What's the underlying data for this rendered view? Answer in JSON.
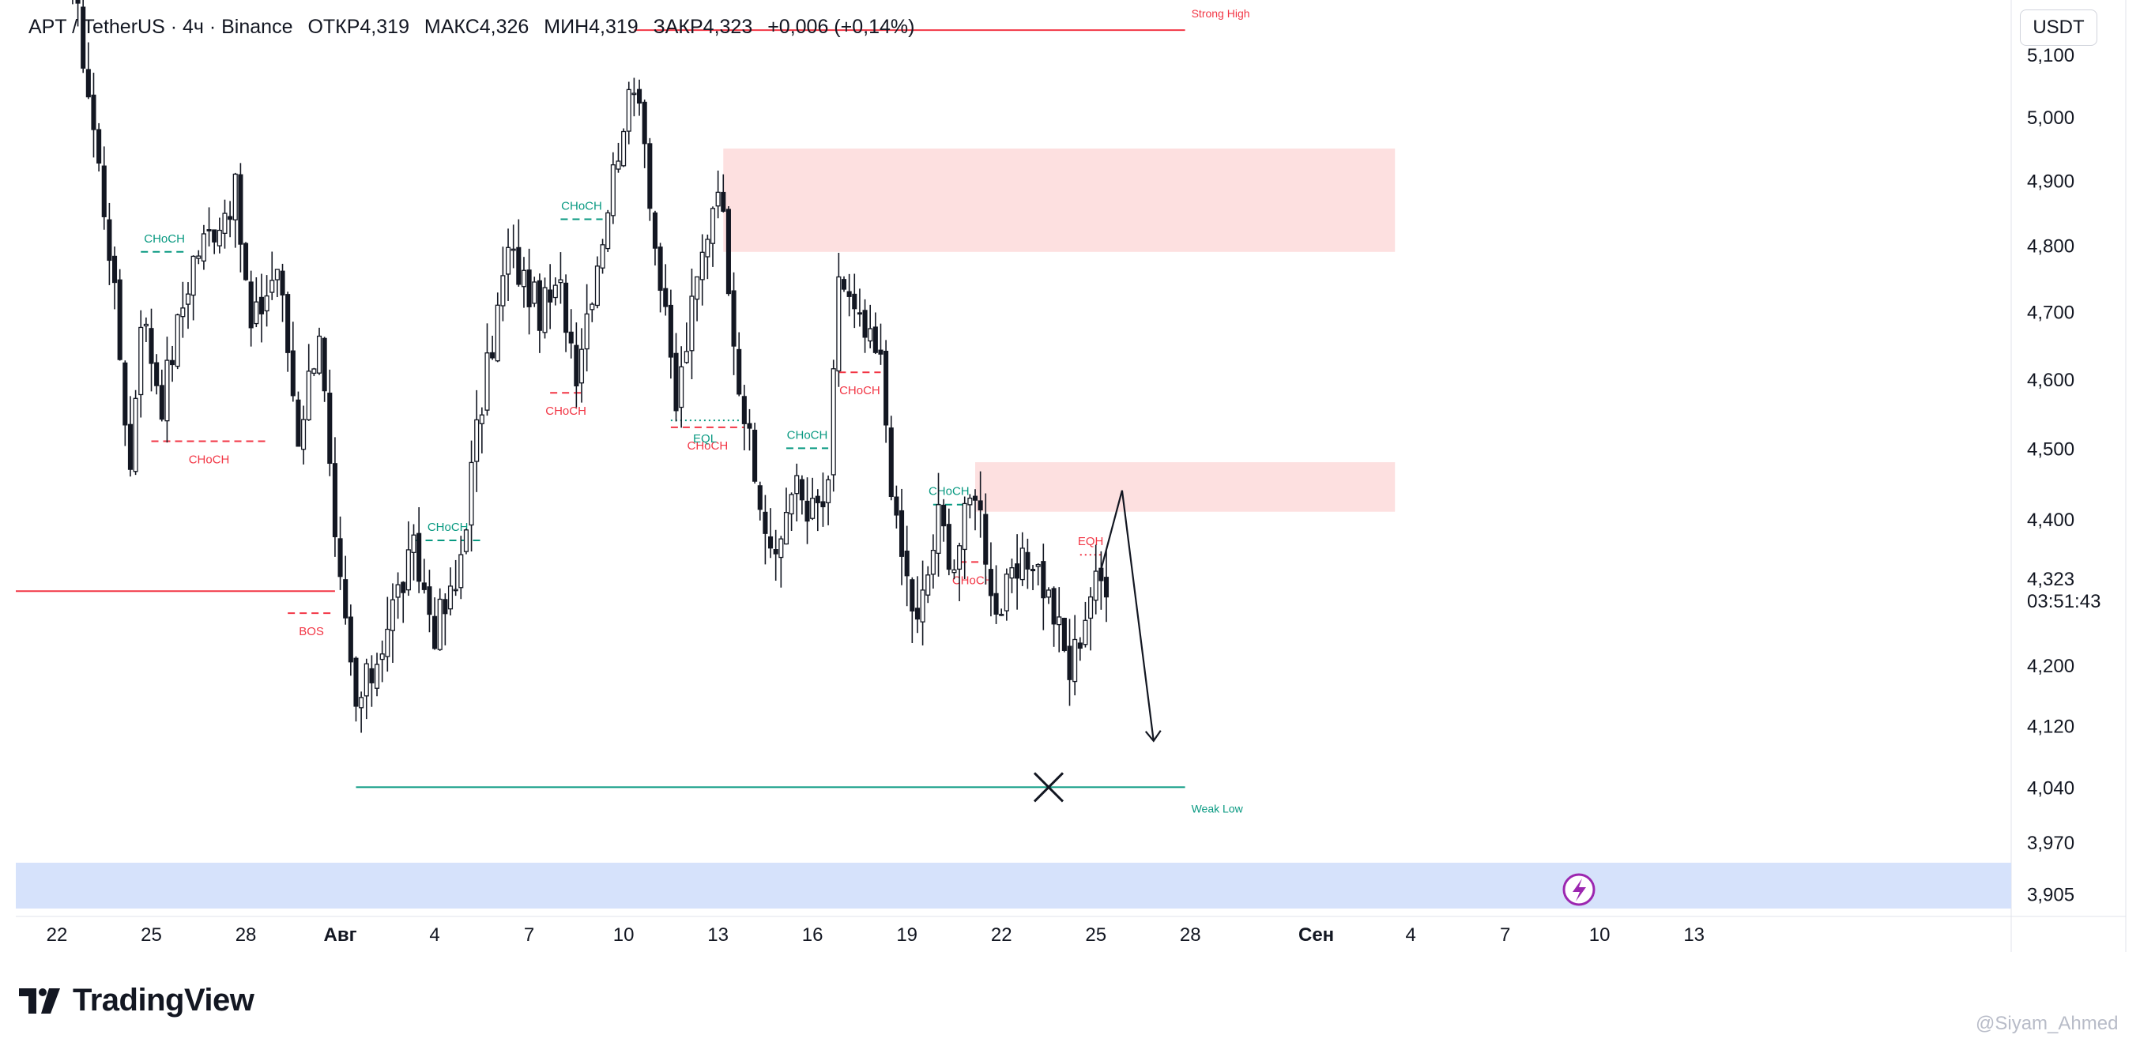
{
  "header": {
    "symbol": "APT / TetherUS · 4ч · Binance",
    "open_label": "ОТКР",
    "open": "4,319",
    "high_label": "МАКС",
    "high": "4,326",
    "low_label": "МИН",
    "low": "4,319",
    "close_label": "ЗАКР",
    "close": "4,323",
    "change": "+0,006 (+0,14%)"
  },
  "currency_button": "USDT",
  "brand": "TradingView",
  "watermark": "@Siyam_Ahmed",
  "colors": {
    "up": "#ffffff",
    "down": "#131722",
    "bearish": "#f23645",
    "bullish": "#089981",
    "zone_red": "#fde0e0",
    "zone_blue": "#d6e2fb",
    "lightning": "#9c27b0"
  },
  "chart_data": {
    "type": "candlestick",
    "x_ticks": [
      {
        "label": "22",
        "x": 0
      },
      {
        "label": "25",
        "x": 18
      },
      {
        "label": "28",
        "x": 36
      },
      {
        "label": "Авг",
        "x": 54,
        "bold": true
      },
      {
        "label": "4",
        "x": 72
      },
      {
        "label": "7",
        "x": 90
      },
      {
        "label": "10",
        "x": 108
      },
      {
        "label": "13",
        "x": 126
      },
      {
        "label": "16",
        "x": 144
      },
      {
        "label": "19",
        "x": 162
      },
      {
        "label": "22",
        "x": 180
      },
      {
        "label": "25",
        "x": 198
      },
      {
        "label": "28",
        "x": 216
      },
      {
        "label": "Сен",
        "x": 240,
        "bold": true
      },
      {
        "label": "4",
        "x": 258
      },
      {
        "label": "7",
        "x": 276
      },
      {
        "label": "10",
        "x": 294
      },
      {
        "label": "13",
        "x": 312
      }
    ],
    "y_ticks": [
      "5,100",
      "5,000",
      "4,900",
      "4,800",
      "4,700",
      "4,600",
      "4,500",
      "4,400",
      "4,200",
      "4,120",
      "4,040",
      "3,970",
      "3,905"
    ],
    "y_tick_values": [
      5.1,
      5.0,
      4.9,
      4.8,
      4.7,
      4.6,
      4.5,
      4.4,
      4.2,
      4.12,
      4.04,
      3.97,
      3.905
    ],
    "last_price": "4,323",
    "countdown": "03:51:43",
    "anchors": [
      {
        "i": 0,
        "p": 5.4
      },
      {
        "i": 10,
        "p": 4.8
      },
      {
        "i": 14,
        "p": 4.47
      },
      {
        "i": 16,
        "p": 4.7
      },
      {
        "i": 20,
        "p": 4.57
      },
      {
        "i": 26,
        "p": 4.78
      },
      {
        "i": 34,
        "p": 4.88
      },
      {
        "i": 37,
        "p": 4.67
      },
      {
        "i": 42,
        "p": 4.77
      },
      {
        "i": 46,
        "p": 4.52
      },
      {
        "i": 50,
        "p": 4.68
      },
      {
        "i": 53,
        "p": 4.35
      },
      {
        "i": 57,
        "p": 4.14
      },
      {
        "i": 60,
        "p": 4.19
      },
      {
        "i": 64,
        "p": 4.28
      },
      {
        "i": 68,
        "p": 4.35
      },
      {
        "i": 72,
        "p": 4.25
      },
      {
        "i": 76,
        "p": 4.3
      },
      {
        "i": 80,
        "p": 4.52
      },
      {
        "i": 86,
        "p": 4.79
      },
      {
        "i": 92,
        "p": 4.7
      },
      {
        "i": 96,
        "p": 4.73
      },
      {
        "i": 99,
        "p": 4.62
      },
      {
        "i": 104,
        "p": 4.82
      },
      {
        "i": 108,
        "p": 5.0
      },
      {
        "i": 111,
        "p": 5.05
      },
      {
        "i": 114,
        "p": 4.8
      },
      {
        "i": 118,
        "p": 4.56
      },
      {
        "i": 121,
        "p": 4.7
      },
      {
        "i": 126,
        "p": 4.91
      },
      {
        "i": 130,
        "p": 4.6
      },
      {
        "i": 133,
        "p": 4.45
      },
      {
        "i": 137,
        "p": 4.33
      },
      {
        "i": 140,
        "p": 4.46
      },
      {
        "i": 143,
        "p": 4.4
      },
      {
        "i": 147,
        "p": 4.43
      },
      {
        "i": 149,
        "p": 4.76
      },
      {
        "i": 152,
        "p": 4.69
      },
      {
        "i": 157,
        "p": 4.62
      },
      {
        "i": 160,
        "p": 4.38
      },
      {
        "i": 164,
        "p": 4.25
      },
      {
        "i": 168,
        "p": 4.4
      },
      {
        "i": 171,
        "p": 4.34
      },
      {
        "i": 175,
        "p": 4.45
      },
      {
        "i": 179,
        "p": 4.27
      },
      {
        "i": 183,
        "p": 4.32
      },
      {
        "i": 186,
        "p": 4.35
      },
      {
        "i": 190,
        "p": 4.27
      },
      {
        "i": 193,
        "p": 4.19
      },
      {
        "i": 197,
        "p": 4.3
      },
      {
        "i": 200,
        "p": 4.32
      }
    ],
    "zones": [
      {
        "color": "red",
        "x_start": 127,
        "x_end": 255,
        "top": 4.95,
        "bottom": 4.79
      },
      {
        "color": "red",
        "x_start": 175,
        "x_end": 255,
        "top": 4.48,
        "bottom": 4.41
      }
    ],
    "lines": [
      {
        "kind": "strong-high",
        "x_start": 110,
        "x_end": 215,
        "p": 5.14,
        "label": "Strong High"
      },
      {
        "kind": "weak-low",
        "x_start": 57,
        "x_end": 215,
        "p": 4.04,
        "label": "Weak Low"
      },
      {
        "kind": "level",
        "x_start": 0,
        "x_end": 53,
        "p": 4.3,
        "label": ""
      }
    ],
    "structure": [
      {
        "label": "CHoCH",
        "x_start": 16,
        "x_end": 25,
        "p": 4.79,
        "color": "green",
        "label_pos": "above"
      },
      {
        "label": "CHoCH",
        "x_start": 18,
        "x_end": 40,
        "p": 4.51,
        "color": "red",
        "label_pos": "below"
      },
      {
        "label": "BOS",
        "x_start": 44,
        "x_end": 53,
        "p": 4.27,
        "color": "red",
        "label_pos": "below"
      },
      {
        "label": "CHoCH",
        "x_start": 68,
        "x_end": 81,
        "p": 4.37,
        "color": "green",
        "label_pos": "above"
      },
      {
        "label": "CHoCH",
        "x_start": 94,
        "x_end": 100,
        "p": 4.58,
        "color": "red",
        "label_pos": "below"
      },
      {
        "label": "CHoCH",
        "x_start": 96,
        "x_end": 104,
        "p": 4.84,
        "color": "green",
        "label_pos": "above"
      },
      {
        "label": "CHoCH",
        "x_start": 117,
        "x_end": 131,
        "p": 4.53,
        "color": "red",
        "label_pos": "below"
      },
      {
        "label": "CHoCH",
        "x_start": 139,
        "x_end": 147,
        "p": 4.5,
        "color": "green",
        "label_pos": "above"
      },
      {
        "label": "CHoCH",
        "x_start": 149,
        "x_end": 157,
        "p": 4.61,
        "color": "red",
        "label_pos": "below"
      },
      {
        "label": "CHoCH",
        "x_start": 167,
        "x_end": 173,
        "p": 4.42,
        "color": "green",
        "label_pos": "above"
      },
      {
        "label": "CHoCH",
        "x_start": 172,
        "x_end": 177,
        "p": 4.34,
        "color": "red",
        "label_pos": "below"
      }
    ],
    "eq_marks": [
      {
        "label": "EQL",
        "x_start": 117,
        "x_end": 130,
        "p": 4.54,
        "color": "green",
        "label_pos": "below"
      },
      {
        "label": "EQH",
        "x_start": 195,
        "x_end": 199,
        "p": 4.35,
        "color": "red",
        "label_pos": "above"
      }
    ],
    "projection": [
      {
        "x": 199,
        "p": 4.33
      },
      {
        "x": 203,
        "p": 4.44
      },
      {
        "x": 209,
        "p": 4.1
      }
    ],
    "target_mark": {
      "x": 189,
      "p": 4.04
    }
  }
}
